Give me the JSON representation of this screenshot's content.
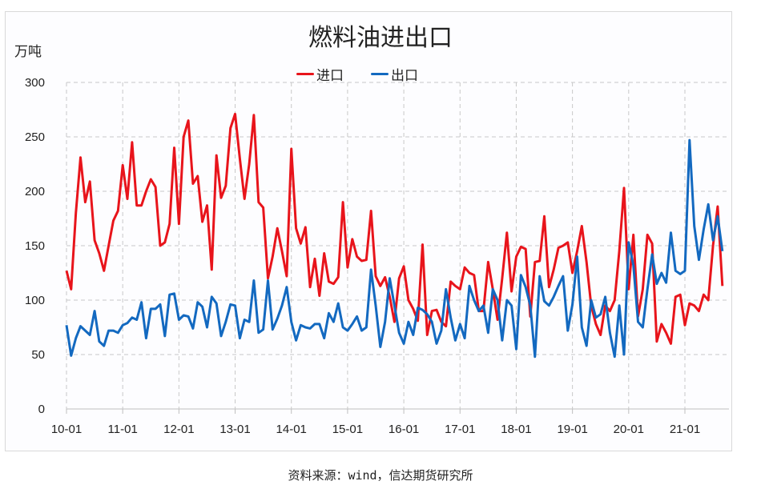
{
  "chart_data": {
    "type": "line",
    "title": "燃料油进出口",
    "ylabel": "万吨",
    "xlabel": "",
    "ylim": [
      0,
      300
    ],
    "yticks": [
      "0",
      "50",
      "100",
      "150",
      "200",
      "250",
      "300"
    ],
    "xticks": [
      "10-01",
      "11-01",
      "12-01",
      "13-01",
      "14-01",
      "15-01",
      "16-01",
      "17-01",
      "18-01",
      "19-01",
      "20-01",
      "21-01"
    ],
    "x_start": "2010-01",
    "x_frequency": "monthly",
    "grid": true,
    "legend_position": "top",
    "series": [
      {
        "name": "进口",
        "color": "#e8141b",
        "values": [
          127,
          110,
          180,
          231,
          190,
          209,
          155,
          143,
          127,
          150,
          173,
          182,
          224,
          193,
          245,
          187,
          187,
          200,
          211,
          204,
          150,
          153,
          170,
          240,
          170,
          250,
          265,
          207,
          214,
          172,
          187,
          128,
          233,
          194,
          205,
          258,
          271,
          230,
          193,
          225,
          270,
          190,
          185,
          120,
          140,
          166,
          145,
          122,
          239,
          166,
          152,
          167,
          112,
          138,
          104,
          143,
          117,
          115,
          121,
          190,
          130,
          156,
          140,
          136,
          137,
          182,
          122,
          113,
          121,
          103,
          80,
          120,
          131,
          100,
          92,
          81,
          151,
          68,
          90,
          91,
          80,
          76,
          117,
          113,
          110,
          130,
          125,
          123,
          90,
          90,
          135,
          110,
          82,
          120,
          162,
          108,
          140,
          149,
          147,
          85,
          135,
          136,
          177,
          112,
          128,
          148,
          150,
          153,
          125,
          145,
          168,
          135,
          95,
          78,
          68,
          95,
          90,
          100,
          145,
          203,
          110,
          160,
          85,
          110,
          160,
          152,
          62,
          78,
          70,
          60,
          103,
          105,
          77,
          97,
          95,
          90,
          105,
          100,
          150,
          186,
          113
        ]
      },
      {
        "name": "出口",
        "color": "#1369c0",
        "values": [
          77,
          49,
          65,
          76,
          72,
          68,
          90,
          62,
          58,
          72,
          72,
          70,
          77,
          79,
          84,
          82,
          98,
          65,
          92,
          92,
          96,
          67,
          105,
          106,
          82,
          86,
          85,
          74,
          98,
          94,
          75,
          103,
          97,
          67,
          80,
          96,
          95,
          65,
          82,
          80,
          118,
          70,
          73,
          118,
          73,
          83,
          95,
          112,
          80,
          63,
          77,
          75,
          74,
          78,
          78,
          65,
          88,
          80,
          97,
          75,
          72,
          78,
          85,
          72,
          75,
          128,
          95,
          57,
          80,
          120,
          95,
          70,
          60,
          80,
          68,
          93,
          91,
          87,
          80,
          60,
          72,
          110,
          84,
          63,
          78,
          65,
          113,
          100,
          90,
          95,
          70,
          110,
          100,
          63,
          100,
          95,
          55,
          123,
          112,
          95,
          48,
          122,
          99,
          95,
          103,
          113,
          122,
          72,
          96,
          140,
          75,
          58,
          100,
          84,
          87,
          103,
          70,
          48,
          95,
          50,
          153,
          132,
          80,
          75,
          110,
          142,
          115,
          125,
          116,
          162,
          127,
          124,
          127,
          247,
          168,
          137,
          165,
          188,
          155,
          177,
          145
        ]
      }
    ]
  },
  "source": "资料来源：wind，信达期货研究所"
}
